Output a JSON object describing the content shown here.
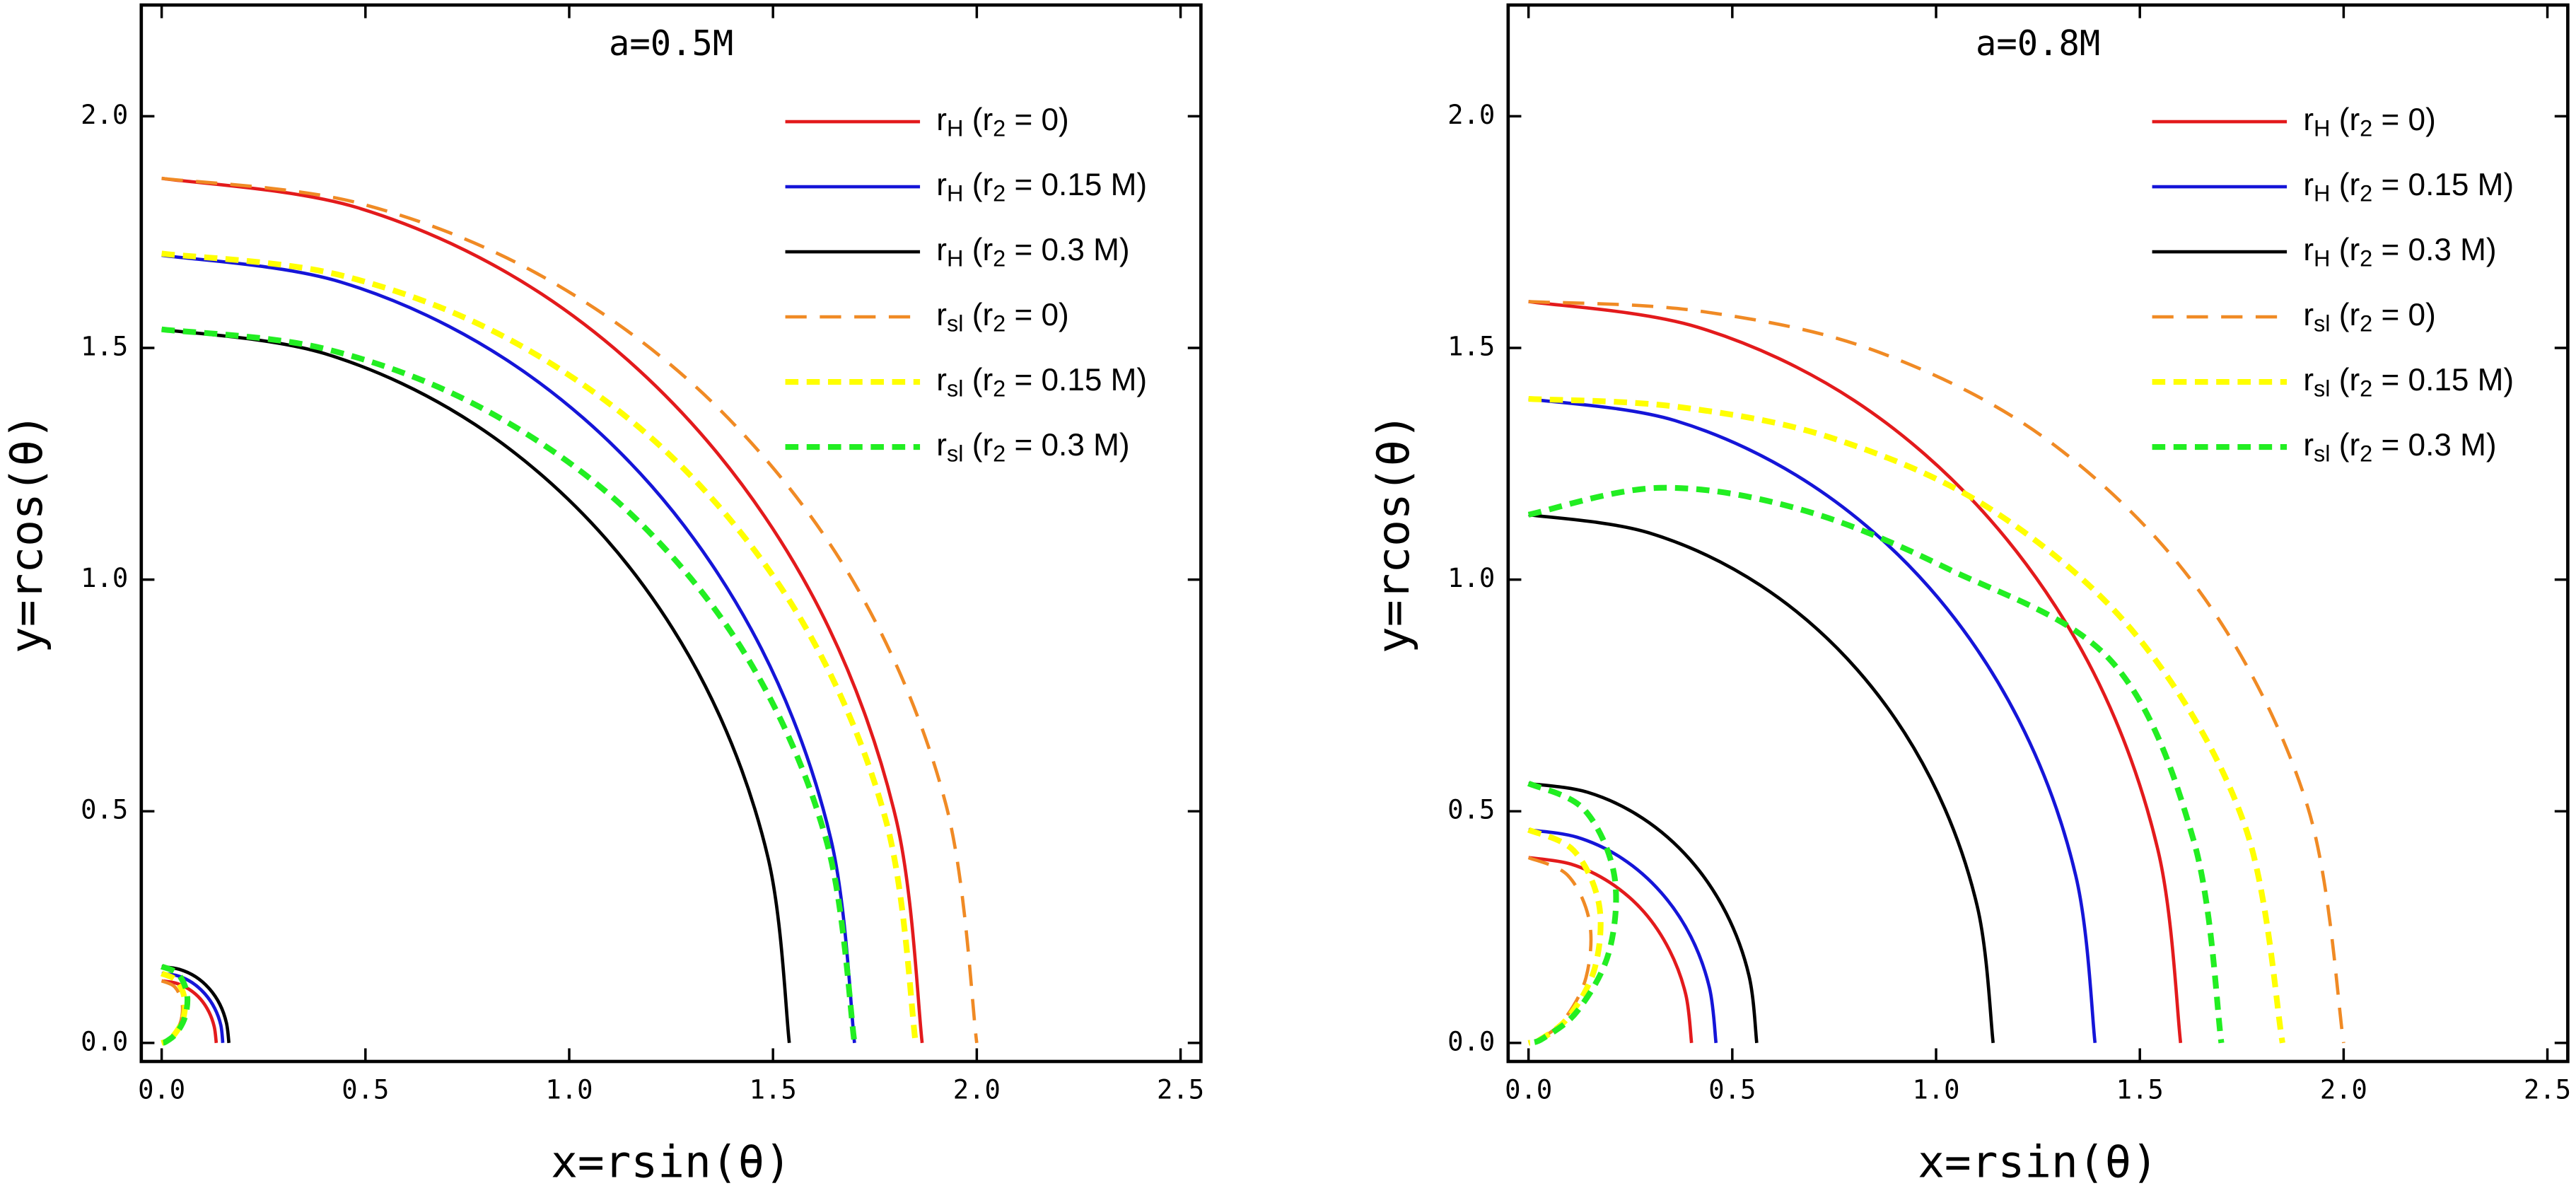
{
  "chart_data": [
    {
      "type": "line",
      "title": "a=0.5M",
      "x_label": "x=rsin(θ)",
      "y_label": "y=rcos(θ)",
      "xlim": [
        -0.05,
        2.55
      ],
      "ylim": [
        -0.04,
        2.24
      ],
      "xticks": [
        {
          "value": 0,
          "label": "0.0"
        },
        {
          "value": 0.5,
          "label": "0.5"
        },
        {
          "value": 1,
          "label": "1.0"
        },
        {
          "value": 1.5,
          "label": "1.5"
        },
        {
          "value": 2,
          "label": "2.0"
        },
        {
          "value": 2.5,
          "label": "2.5"
        }
      ],
      "yticks": [
        {
          "value": 0,
          "label": "0.0"
        },
        {
          "value": 0.5,
          "label": "0.5"
        },
        {
          "value": 1,
          "label": "1.0"
        },
        {
          "value": 1.5,
          "label": "1.5"
        },
        {
          "value": 2,
          "label": "2.0"
        }
      ],
      "legend": "upper right",
      "series": [
        {
          "name": "rH (r2 = 0)",
          "color": "#e31a1c",
          "linestyle": "solid",
          "x": [
            0,
            0.483,
            0.933,
            1.319,
            1.616,
            1.802,
            1.866,
            null,
            0,
            0.035,
            0.067,
            0.095,
            0.116,
            0.129,
            0.134
          ],
          "values": [
            1.866,
            1.802,
            1.616,
            1.319,
            0.933,
            0.483,
            0,
            null,
            0.134,
            0.129,
            0.116,
            0.095,
            0.067,
            0.035,
            0
          ]
        },
        {
          "name": "rH (r2 = 0.15 M)",
          "color": "#1515d8",
          "linestyle": "solid",
          "x": [
            0,
            0.44,
            0.85,
            1.202,
            1.472,
            1.642,
            1.7,
            null,
            0,
            0.039,
            0.075,
            0.106,
            0.13,
            0.145,
            0.15
          ],
          "values": [
            1.7,
            1.642,
            1.472,
            1.202,
            0.85,
            0.44,
            0,
            null,
            0.15,
            0.145,
            0.13,
            0.106,
            0.075,
            0.039,
            0
          ]
        },
        {
          "name": "rH (r2 = 0.3 M)",
          "color": "#000000",
          "linestyle": "solid",
          "x": [
            0,
            0.399,
            0.77,
            1.089,
            1.334,
            1.488,
            1.54,
            null,
            0,
            0.043,
            0.083,
            0.117,
            0.143,
            0.159,
            0.165
          ],
          "values": [
            1.54,
            1.488,
            1.334,
            1.089,
            0.77,
            0.399,
            0,
            null,
            0.165,
            0.159,
            0.143,
            0.117,
            0.083,
            0.043,
            0
          ]
        },
        {
          "name": "rsl (r2 = 0)",
          "color": "#f08a24",
          "linestyle": "long-dash",
          "x": [
            0,
            0.4855,
            0.9507,
            1.368,
            1.705,
            1.924,
            2.0,
            null,
            0,
            0.032,
            0.05,
            0.047,
            0.029,
            0.009,
            0
          ],
          "values": [
            1.866,
            1.812,
            1.646,
            1.368,
            0.984,
            0.5155,
            0,
            null,
            0.134,
            0.121,
            0.087,
            0.047,
            0.017,
            0.002,
            0
          ]
        },
        {
          "name": "rsl (r2 = 0.15 M)",
          "color": "#ffff00",
          "linestyle": "short-dash",
          "x": [
            0,
            0.4437,
            0.8715,
            1.2588,
            1.5726,
            1.7782,
            1.85,
            null,
            0,
            0.036,
            0.056,
            0.053,
            0.032,
            0.01,
            0
          ],
          "values": [
            1.7036,
            1.6559,
            1.5094,
            1.2588,
            0.908,
            0.4764,
            0,
            null,
            0.15,
            0.135,
            0.097,
            0.053,
            0.019,
            0.003,
            0
          ]
        },
        {
          "name": "rsl (r2 = 0.3 M)",
          "color": "#22ee22",
          "linestyle": "short-dash",
          "x": [
            0,
            0.401,
            0.79,
            1.146,
            1.438,
            1.631,
            1.7,
            null,
            0,
            0.04,
            0.062,
            0.058,
            0.036,
            0.011,
            0
          ],
          "values": [
            1.54,
            1.498,
            1.368,
            1.146,
            0.83,
            0.437,
            0,
            null,
            0.165,
            0.149,
            0.107,
            0.058,
            0.021,
            0.003,
            0
          ]
        }
      ]
    },
    {
      "type": "line",
      "title": "a=0.8M",
      "x_label": "x=rsin(θ)",
      "y_label": "y=rcos(θ)",
      "xlim": [
        -0.05,
        2.55
      ],
      "ylim": [
        -0.04,
        2.24
      ],
      "xticks": [
        {
          "value": 0,
          "label": "0.0"
        },
        {
          "value": 0.5,
          "label": "0.5"
        },
        {
          "value": 1,
          "label": "1.0"
        },
        {
          "value": 1.5,
          "label": "1.5"
        },
        {
          "value": 2,
          "label": "2.0"
        },
        {
          "value": 2.5,
          "label": "2.5"
        }
      ],
      "yticks": [
        {
          "value": 0,
          "label": "0.0"
        },
        {
          "value": 0.5,
          "label": "0.5"
        },
        {
          "value": 1,
          "label": "1.0"
        },
        {
          "value": 1.5,
          "label": "1.5"
        },
        {
          "value": 2,
          "label": "2.0"
        }
      ],
      "legend": "upper right",
      "series": [
        {
          "name": "rH (r2 = 0)",
          "color": "#e31a1c",
          "linestyle": "solid",
          "x": [
            0,
            0.414,
            0.8,
            1.131,
            1.386,
            1.545,
            1.6,
            null,
            0,
            0.104,
            0.2,
            0.283,
            0.346,
            0.386,
            0.4
          ],
          "values": [
            1.6,
            1.545,
            1.386,
            1.131,
            0.8,
            0.414,
            0,
            null,
            0.4,
            0.386,
            0.346,
            0.283,
            0.2,
            0.104,
            0
          ]
        },
        {
          "name": "rH (r2 = 0.15 M)",
          "color": "#1515d8",
          "linestyle": "solid",
          "x": [
            0,
            0.36,
            0.695,
            0.983,
            1.204,
            1.343,
            1.39,
            null,
            0,
            0.119,
            0.23,
            0.325,
            0.398,
            0.444,
            0.46
          ],
          "values": [
            1.39,
            1.343,
            1.204,
            0.983,
            0.695,
            0.36,
            0,
            null,
            0.46,
            0.444,
            0.398,
            0.325,
            0.23,
            0.119,
            0
          ]
        },
        {
          "name": "rH (r2 = 0.3 M)",
          "color": "#000000",
          "linestyle": "solid",
          "x": [
            0,
            0.295,
            0.57,
            0.806,
            0.987,
            1.101,
            1.14,
            null,
            0,
            0.145,
            0.28,
            0.396,
            0.485,
            0.541,
            0.56
          ],
          "values": [
            1.14,
            1.101,
            0.987,
            0.806,
            0.57,
            0.295,
            0,
            null,
            0.56,
            0.541,
            0.485,
            0.396,
            0.28,
            0.145,
            0
          ]
        },
        {
          "name": "rsl (r2 = 0)",
          "color": "#f08a24",
          "linestyle": "long-dash",
          "x": [
            0,
            0.4231,
            0.8606,
            1.2902,
            1.6597,
            1.9109,
            2.0,
            null,
            0,
            0.097,
            0.15,
            0.141,
            0.087,
            0.026,
            0
          ],
          "values": [
            1.6,
            1.579,
            1.4905,
            1.2902,
            0.9583,
            0.512,
            0,
            null,
            0.4,
            0.361,
            0.26,
            0.141,
            0.05,
            0.007,
            0
          ]
        },
        {
          "name": "rsl (r2 = 0.15 M)",
          "color": "#ffff00",
          "linestyle": "short-dash",
          "x": [
            0,
            0.3678,
            0.7525,
            1.1455,
            1.5025,
            1.757,
            1.85,
            null,
            0,
            0.111,
            0.173,
            0.163,
            0.1,
            0.03,
            0
          ],
          "values": [
            1.39,
            1.3726,
            1.3033,
            1.1455,
            0.8675,
            0.4708,
            0,
            null,
            0.46,
            0.415,
            0.299,
            0.163,
            0.058,
            0.008,
            0
          ]
        },
        {
          "name": "rsl (r2 = 0.3 M)",
          "color": "#22ee22",
          "linestyle": "short-dash",
          "x": [
            0,
            0.321,
            0.665,
            1.025,
            1.429,
            1.632,
            1.7,
            null,
            0,
            0.135,
            0.21,
            0.198,
            0.121,
            0.036,
            0
          ],
          "values": [
            1.14,
            1.198,
            1.152,
            1.025,
            0.825,
            0.437,
            0,
            null,
            0.56,
            0.505,
            0.364,
            0.198,
            0.07,
            0.01,
            0
          ]
        }
      ]
    }
  ]
}
